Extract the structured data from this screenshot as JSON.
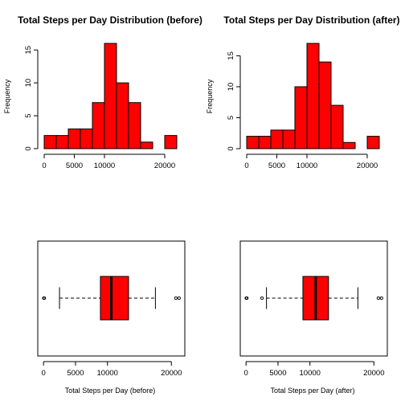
{
  "colors": {
    "fill": "#ff0000",
    "stroke": "#000000",
    "background": "#ffffff"
  },
  "chart_data": [
    {
      "type": "histogram",
      "title": "Total Steps per Day Distribution (before)",
      "xlabel": "",
      "ylabel": "Frequency",
      "bin_edges": [
        0,
        2000,
        4000,
        6000,
        8000,
        10000,
        12000,
        14000,
        16000,
        18000,
        20000,
        22000
      ],
      "values": [
        2,
        2,
        3,
        3,
        7,
        16,
        10,
        7,
        1,
        0,
        2
      ],
      "xticks": [
        0,
        5000,
        10000,
        20000
      ],
      "yticks": [
        0,
        5,
        10,
        15
      ],
      "ylim": [
        0,
        16
      ]
    },
    {
      "type": "histogram",
      "title": "Total Steps per Day Distribution (after)",
      "xlabel": "",
      "ylabel": "Frequency",
      "bin_edges": [
        0,
        2000,
        4000,
        6000,
        8000,
        10000,
        12000,
        14000,
        16000,
        18000,
        20000,
        22000
      ],
      "values": [
        2,
        2,
        3,
        3,
        10,
        17,
        14,
        7,
        1,
        0,
        2
      ],
      "xticks": [
        0,
        5000,
        10000,
        20000
      ],
      "yticks": [
        0,
        5,
        10,
        15
      ],
      "ylim": [
        0,
        17
      ]
    },
    {
      "type": "boxplot",
      "title": "",
      "xlabel": "Total Steps per Day (before)",
      "ylabel": "",
      "stats": {
        "whisker_low": 2500,
        "q1": 8900,
        "median": 10600,
        "q3": 13300,
        "whisker_high": 17500
      },
      "outliers": [
        41,
        126,
        20700,
        21200
      ],
      "xticks": [
        0,
        5000,
        10000,
        20000
      ],
      "xlim": [
        -900,
        22100
      ]
    },
    {
      "type": "boxplot",
      "title": "",
      "xlabel": "Total Steps per Day (after)",
      "ylabel": "",
      "stats": {
        "whisker_low": 3200,
        "q1": 8900,
        "median": 10900,
        "q3": 12900,
        "whisker_high": 17500
      },
      "outliers": [
        41,
        126,
        2500,
        20700,
        21200
      ],
      "xticks": [
        0,
        5000,
        10000,
        20000
      ],
      "xlim": [
        -900,
        22100
      ]
    }
  ]
}
